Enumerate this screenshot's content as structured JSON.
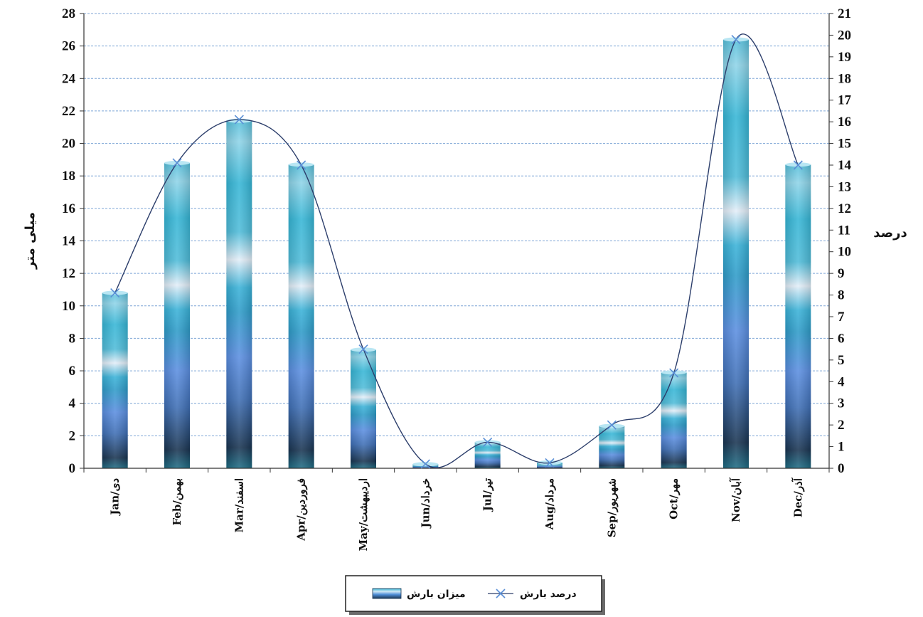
{
  "chart_data": {
    "type": "bar",
    "categories": [
      "Jan/دی",
      "Feb/بهمن",
      "Mar/اسفند",
      "Apr/فروردین",
      "May/اردیبهشت",
      "Jun/خرداد",
      "Jul/تیر",
      "Aug/مرداد",
      "Sep/شهریور",
      "Oct/مهر",
      "Nov/آبان",
      "Dec/آذر"
    ],
    "series": [
      {
        "name": "میزان بارش",
        "type": "bar",
        "axis": "left",
        "values": [
          10.8,
          18.8,
          21.4,
          18.7,
          7.3,
          0.25,
          1.6,
          0.35,
          2.6,
          5.9,
          26.4,
          18.7
        ]
      },
      {
        "name": "درصد بارش",
        "type": "line",
        "axis": "right",
        "marker": "x",
        "values": [
          8.1,
          14.1,
          16.1,
          14.0,
          5.5,
          0.2,
          1.2,
          0.25,
          2.0,
          4.4,
          19.8,
          14.0
        ]
      }
    ],
    "ylabel": "میلی متر",
    "y2label": "درصد",
    "ylim": [
      0,
      28
    ],
    "y2lim": [
      0,
      21
    ],
    "yticks": [
      "0",
      "2",
      "4",
      "6",
      "8",
      "10",
      "12",
      "14",
      "16",
      "18",
      "20",
      "22",
      "24",
      "26",
      "28"
    ],
    "y2ticks": [
      "0",
      "1",
      "2",
      "3",
      "4",
      "5",
      "6",
      "7",
      "8",
      "9",
      "10",
      "11",
      "12",
      "13",
      "14",
      "15",
      "16",
      "17",
      "18",
      "19",
      "20",
      "21"
    ],
    "grid": true,
    "legend": "bottom",
    "colors": {
      "bar_dark": "#1a3a5c",
      "bar_mid": "#4f8fd8",
      "bar_light": "#38b4d6",
      "bar_highlight": "#cfe8f4",
      "line": "#2c3e6b",
      "grid": "#7fa6d6"
    }
  }
}
